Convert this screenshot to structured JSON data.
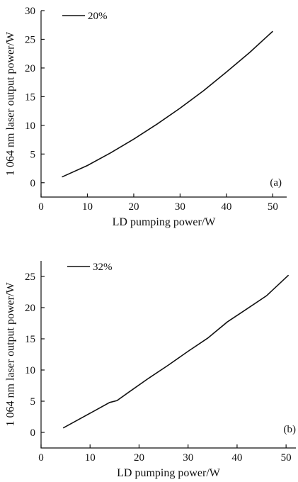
{
  "chart_data": [
    {
      "type": "line",
      "panel_label": "(a)",
      "xlabel": "LD pumping power/W",
      "ylabel": "1 064 nm laser output power/W",
      "xlim": [
        0,
        53
      ],
      "ylim": [
        -2.5,
        30
      ],
      "xticks": [
        "0",
        "10",
        "20",
        "30",
        "40",
        "50"
      ],
      "yticks": [
        "0",
        "5",
        "10",
        "15",
        "20",
        "25",
        "30"
      ],
      "legend_position": "top-left",
      "series": [
        {
          "name": "20%",
          "x": [
            4.5,
            10,
            15,
            20,
            25,
            30,
            35,
            40,
            45,
            50
          ],
          "y": [
            1.0,
            3.0,
            5.2,
            7.6,
            10.2,
            13.0,
            16.0,
            19.3,
            22.7,
            26.4
          ]
        }
      ]
    },
    {
      "type": "line",
      "panel_label": "(b)",
      "xlabel": "LD pumping power/W",
      "ylabel": "1 064 nm laser output power/W",
      "xlim": [
        0,
        52
      ],
      "ylim": [
        -2.5,
        27.5
      ],
      "xticks": [
        "0",
        "10",
        "20",
        "30",
        "40",
        "50"
      ],
      "yticks": [
        "0",
        "5",
        "10",
        "15",
        "20",
        "25"
      ],
      "legend_position": "top-left",
      "series": [
        {
          "name": "32%",
          "x": [
            4.5,
            8,
            11,
            14,
            15.5,
            18,
            22,
            26,
            30,
            34,
            38,
            42,
            46,
            50.5
          ],
          "y": [
            0.7,
            2.2,
            3.5,
            4.8,
            5.1,
            6.5,
            8.7,
            10.8,
            13.0,
            15.1,
            17.7,
            19.8,
            21.9,
            25.2
          ]
        }
      ]
    }
  ]
}
